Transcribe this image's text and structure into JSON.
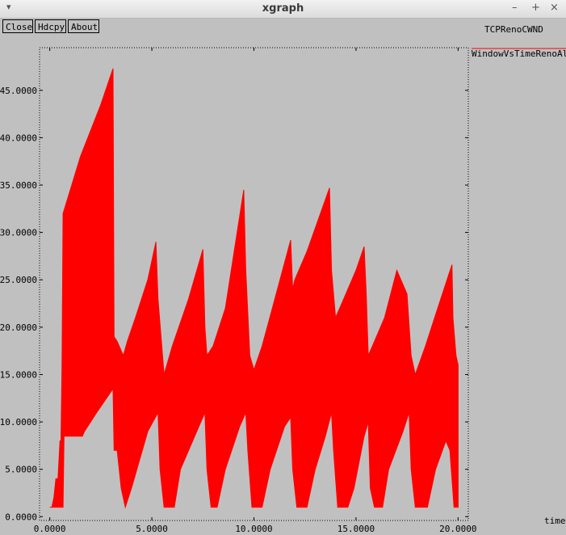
{
  "window": {
    "title": "xgraph",
    "menu_glyph": "▾",
    "minimize_glyph": "–",
    "maximize_glyph": "+",
    "close_glyph": "×"
  },
  "toolbar": {
    "close_label": "Close",
    "hdcpy_label": "Hdcpy",
    "about_label": "About"
  },
  "colors": {
    "background": "#c0c0c0",
    "series": "#ff0000",
    "axis": "#000000"
  },
  "chart_data": {
    "type": "line",
    "title": "TCPRenoCWND",
    "xlabel": "time",
    "ylabel": "",
    "xlim": [
      -0.5,
      20.5
    ],
    "ylim": [
      -0.4,
      49.5
    ],
    "x_ticks": [
      0,
      5,
      10,
      15,
      20
    ],
    "x_tick_labels": [
      "0.0000",
      "5.0000",
      "10.0000",
      "15.0000",
      "20.0000"
    ],
    "y_ticks": [
      0,
      5,
      10,
      15,
      20,
      25,
      30,
      35,
      40,
      45
    ],
    "y_tick_labels": [
      "0.0000",
      "5.0000",
      "10.0000",
      "15.0000",
      "20.0000",
      "25.0000",
      "30.0000",
      "35.0000",
      "40.0000",
      "45.0000"
    ],
    "legend": {
      "placement": "top-right"
    },
    "series": [
      {
        "name": "WindowVsTimeRenoAll",
        "color": "#ff0000",
        "upper": [
          [
            0.0,
            1
          ],
          [
            0.1,
            1
          ],
          [
            0.2,
            2
          ],
          [
            0.3,
            4
          ],
          [
            0.4,
            4
          ],
          [
            0.5,
            8
          ],
          [
            0.55,
            8
          ],
          [
            0.6,
            16
          ],
          [
            0.65,
            32
          ],
          [
            1.5,
            38
          ],
          [
            2.5,
            43.5
          ],
          [
            3.1,
            47.3
          ],
          [
            3.15,
            19
          ],
          [
            3.3,
            18.5
          ],
          [
            3.6,
            17
          ],
          [
            3.8,
            18.5
          ],
          [
            4.2,
            21
          ],
          [
            4.8,
            25
          ],
          [
            5.2,
            29
          ],
          [
            5.3,
            23
          ],
          [
            5.6,
            15
          ],
          [
            6.0,
            18
          ],
          [
            6.8,
            23
          ],
          [
            7.5,
            28.2
          ],
          [
            7.6,
            20
          ],
          [
            7.7,
            17
          ],
          [
            8.0,
            18
          ],
          [
            8.6,
            22
          ],
          [
            9.5,
            34.5
          ],
          [
            9.6,
            26
          ],
          [
            9.8,
            17
          ],
          [
            10.0,
            15.5
          ],
          [
            10.4,
            18
          ],
          [
            10.9,
            22
          ],
          [
            11.8,
            29.2
          ],
          [
            11.9,
            24
          ],
          [
            12.0,
            25
          ],
          [
            12.6,
            28
          ],
          [
            13.7,
            34.7
          ],
          [
            13.8,
            26
          ],
          [
            14.0,
            21
          ],
          [
            14.4,
            23
          ],
          [
            15.0,
            26
          ],
          [
            15.4,
            28.5
          ],
          [
            15.5,
            23.5
          ],
          [
            15.6,
            17
          ],
          [
            15.8,
            18
          ],
          [
            16.4,
            21
          ],
          [
            17.0,
            26
          ],
          [
            17.5,
            23.5
          ],
          [
            17.7,
            17
          ],
          [
            17.9,
            15
          ],
          [
            18.4,
            18
          ],
          [
            19.0,
            22
          ],
          [
            19.7,
            26.6
          ],
          [
            19.75,
            21
          ],
          [
            19.9,
            17
          ],
          [
            20.0,
            16
          ]
        ],
        "lower": [
          [
            0.0,
            1
          ],
          [
            0.65,
            1
          ],
          [
            0.7,
            8.5
          ],
          [
            1.6,
            8.5
          ],
          [
            1.7,
            9
          ],
          [
            2.3,
            11
          ],
          [
            3.1,
            13.5
          ],
          [
            3.15,
            7
          ],
          [
            3.3,
            7
          ],
          [
            3.5,
            3
          ],
          [
            3.7,
            1
          ],
          [
            4.0,
            3
          ],
          [
            4.8,
            9
          ],
          [
            5.3,
            11
          ],
          [
            5.4,
            5
          ],
          [
            5.6,
            1
          ],
          [
            6.1,
            1
          ],
          [
            6.4,
            5
          ],
          [
            7.2,
            9
          ],
          [
            7.6,
            11
          ],
          [
            7.7,
            5
          ],
          [
            7.9,
            1
          ],
          [
            8.2,
            1
          ],
          [
            8.6,
            5
          ],
          [
            9.3,
            9.5
          ],
          [
            9.6,
            11
          ],
          [
            9.7,
            7
          ],
          [
            9.9,
            1
          ],
          [
            10.4,
            1
          ],
          [
            10.8,
            5
          ],
          [
            11.5,
            9.5
          ],
          [
            11.8,
            10.5
          ],
          [
            11.9,
            5
          ],
          [
            12.1,
            1
          ],
          [
            12.6,
            1
          ],
          [
            13.0,
            5
          ],
          [
            13.5,
            8.5
          ],
          [
            13.8,
            11
          ],
          [
            13.9,
            7
          ],
          [
            14.1,
            1
          ],
          [
            14.6,
            1
          ],
          [
            14.9,
            3
          ],
          [
            15.4,
            8.5
          ],
          [
            15.6,
            10
          ],
          [
            15.7,
            3
          ],
          [
            15.9,
            1
          ],
          [
            16.3,
            1
          ],
          [
            16.6,
            5
          ],
          [
            17.3,
            9
          ],
          [
            17.6,
            11
          ],
          [
            17.7,
            5
          ],
          [
            17.9,
            1
          ],
          [
            18.5,
            1
          ],
          [
            18.9,
            5
          ],
          [
            19.4,
            8
          ],
          [
            19.6,
            7
          ],
          [
            19.8,
            1
          ],
          [
            20.0,
            1
          ]
        ]
      }
    ]
  }
}
